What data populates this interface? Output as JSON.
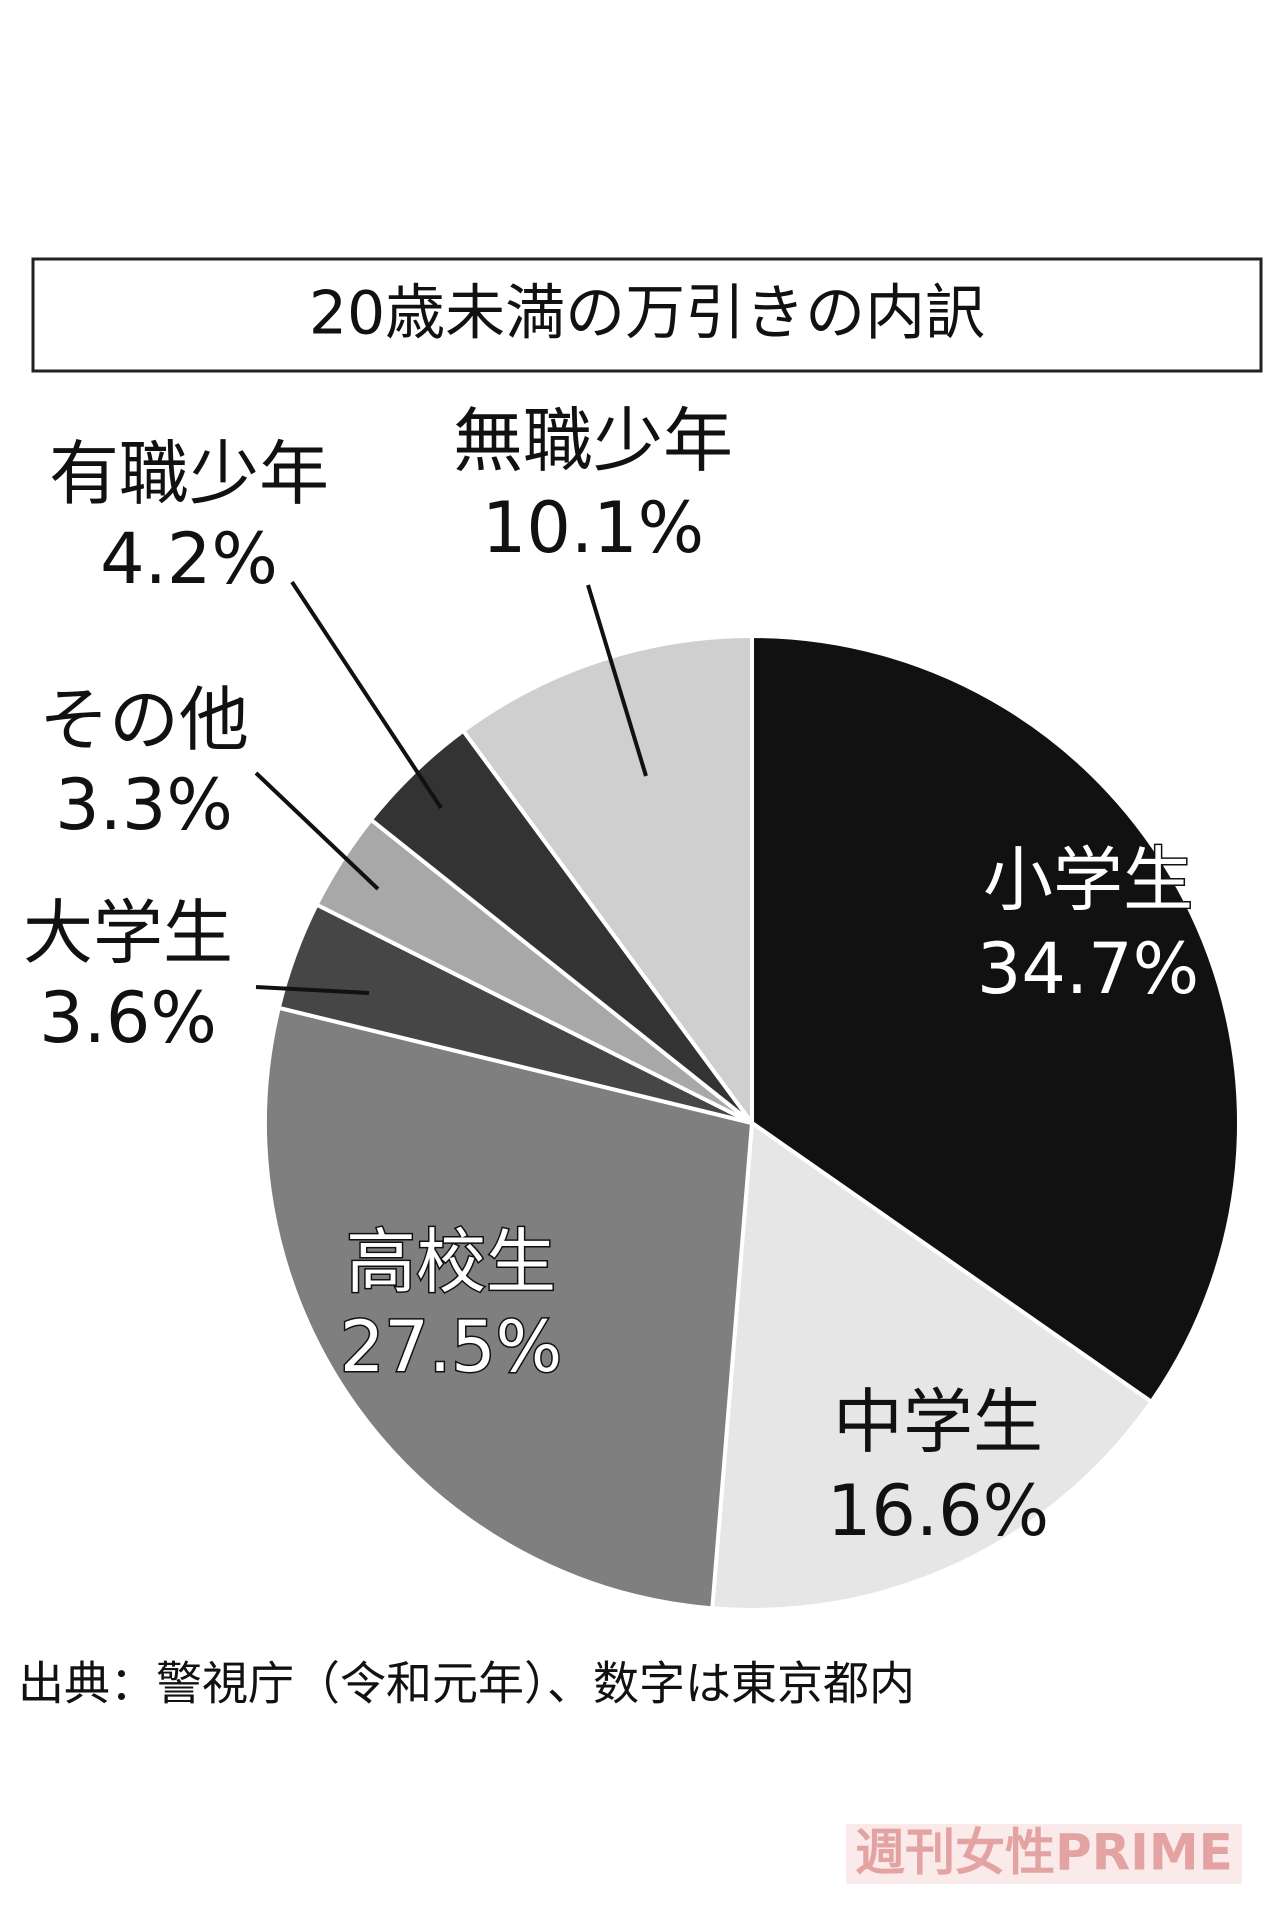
{
  "chart_data": {
    "type": "pie",
    "title": "20歳未満の万引きの内訳",
    "categories": [
      "小学生",
      "中学生",
      "高校生",
      "大学生",
      "その他",
      "有職少年",
      "無職少年"
    ],
    "values": [
      34.7,
      16.6,
      27.5,
      3.6,
      3.3,
      4.2,
      10.1
    ],
    "value_labels": [
      "34.7%",
      "16.6%",
      "27.5%",
      "3.6%",
      "3.3%",
      "4.2%",
      "10.1%"
    ],
    "colors": [
      "#111111",
      "#e6e6e6",
      "#7f7f7f",
      "#464646",
      "#a8a8a8",
      "#333333",
      "#cfcfcf"
    ],
    "source": "出典：警視庁（令和元年）、数字は東京都内",
    "watermark": "週刊女性PRIME"
  }
}
